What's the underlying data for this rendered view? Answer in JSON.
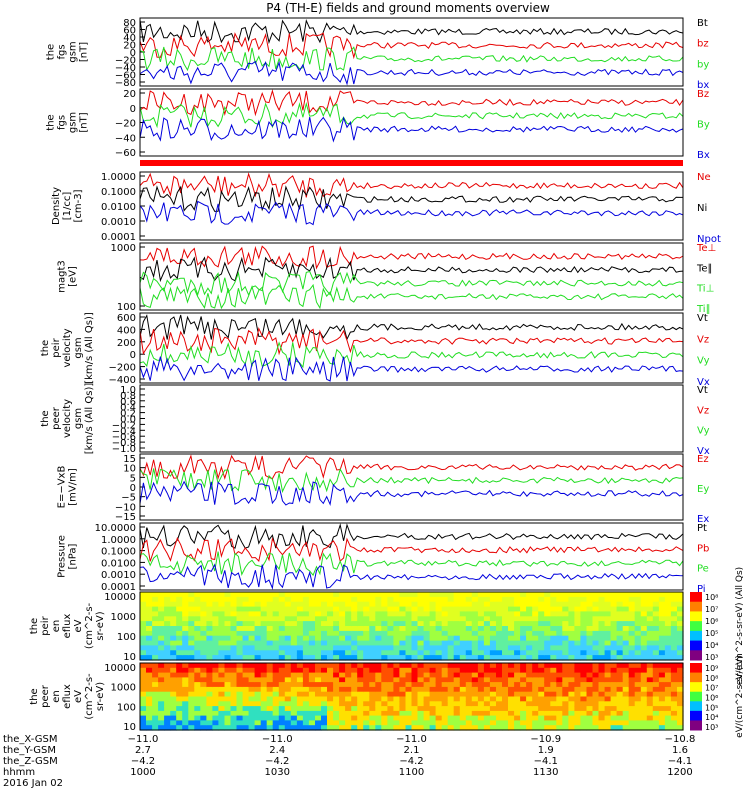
{
  "title": "P4 (TH-E) fields and ground moments overview",
  "colors": {
    "black": "#000000",
    "red": "#e60000",
    "green": "#22dd22",
    "blue": "#0000dd"
  },
  "chart_data": [
    {
      "type": "line",
      "ylabel": [
        "the",
        "fgs",
        "gsm",
        "[nT]"
      ],
      "yticks": [
        "80",
        "60",
        "40",
        "20",
        "0",
        "−20",
        "−40",
        "−60",
        "−80"
      ],
      "series": [
        {
          "name": "Bt",
          "color": "black"
        },
        {
          "name": "bz",
          "color": "red"
        },
        {
          "name": "by",
          "color": "green"
        },
        {
          "name": "bx",
          "color": "blue"
        }
      ]
    },
    {
      "type": "line",
      "ylabel": [
        "the",
        "fgs",
        "gsm",
        "[nT]"
      ],
      "yticks": [
        "20",
        "0",
        "−20",
        "−40",
        "−60"
      ],
      "series": [
        {
          "name": "Bz",
          "color": "red"
        },
        {
          "name": "By",
          "color": "green"
        },
        {
          "name": "Bx",
          "color": "blue"
        }
      ]
    },
    {
      "type": "line",
      "ylabel": [
        "Density",
        "[1/cc]",
        "[cm-3]"
      ],
      "scale": "log",
      "yticks": [
        "1.0000",
        "0.1000",
        "0.0100",
        "0.0010",
        "0.0001"
      ],
      "series": [
        {
          "name": "Ne",
          "color": "red"
        },
        {
          "name": "Ni",
          "color": "black"
        },
        {
          "name": "Npot",
          "color": "blue"
        }
      ]
    },
    {
      "type": "line",
      "ylabel": [
        "magt3",
        "[eV]"
      ],
      "scale": "log",
      "yticks": [
        "1000",
        "100"
      ],
      "series": [
        {
          "name": "Te⊥",
          "color": "red"
        },
        {
          "name": "Te∥",
          "color": "black"
        },
        {
          "name": "Ti⊥",
          "color": "green"
        },
        {
          "name": "Ti∥",
          "color": "green"
        }
      ]
    },
    {
      "type": "line",
      "ylabel": [
        "the",
        "peir",
        "velocity",
        "gsm",
        "[km/s (All Qs)]"
      ],
      "yticks": [
        "600",
        "400",
        "200",
        "0",
        "−200",
        "−400"
      ],
      "series": [
        {
          "name": "Vt",
          "color": "black"
        },
        {
          "name": "Vz",
          "color": "red"
        },
        {
          "name": "Vy",
          "color": "green"
        },
        {
          "name": "Vx",
          "color": "blue"
        }
      ]
    },
    {
      "type": "line",
      "ylabel": [
        "the",
        "peer",
        "velocity",
        "gsm",
        "[km/s (All Qs)]"
      ],
      "yticks": [
        "1.0",
        "0.8",
        "0.6",
        "0.4",
        "0.2",
        "0.0",
        "−0.2",
        "−0.4",
        "−0.6",
        "−0.8",
        "−1.0"
      ],
      "series": [
        {
          "name": "Vt",
          "color": "black"
        },
        {
          "name": "Vz",
          "color": "red"
        },
        {
          "name": "Vy",
          "color": "green"
        },
        {
          "name": "Vx",
          "color": "blue"
        }
      ]
    },
    {
      "type": "line",
      "ylabel": [
        "E=−VxB",
        "[mV/m]"
      ],
      "yticks": [
        "15",
        "10",
        "5",
        "0",
        "−5",
        "−10",
        "−15"
      ],
      "series": [
        {
          "name": "Ez",
          "color": "red"
        },
        {
          "name": "Ey",
          "color": "green"
        },
        {
          "name": "Ex",
          "color": "blue"
        }
      ]
    },
    {
      "type": "line",
      "ylabel": [
        "Pressure",
        "[nPa]"
      ],
      "scale": "log",
      "yticks": [
        "10.0000",
        "1.0000",
        "0.1000",
        "0.0100",
        "0.0010",
        "0.0001"
      ],
      "series": [
        {
          "name": "Pt",
          "color": "black"
        },
        {
          "name": "Pb",
          "color": "red"
        },
        {
          "name": "Pe",
          "color": "green"
        },
        {
          "name": "Pi",
          "color": "blue"
        }
      ]
    },
    {
      "type": "heatmap",
      "ylabel": [
        "the",
        "peir",
        "en",
        "eflux",
        "eV",
        "(cm^2-s-",
        "sr-eV)"
      ],
      "yticks": [
        "10000",
        "1000",
        "100",
        "10"
      ],
      "colorbar": {
        "ticks": [
          "10⁸",
          "10⁷",
          "10⁶",
          "10⁵",
          "10⁴",
          "10³"
        ],
        "label": "eV/(cm^2-s-sr-eV) (All Qs)"
      }
    },
    {
      "type": "heatmap",
      "ylabel": [
        "the",
        "peer",
        "en",
        "eflux",
        "eV",
        "(cm^2-s-",
        "sr-eV)"
      ],
      "yticks": [
        "10000",
        "1000",
        "100",
        "10"
      ],
      "colorbar": {
        "ticks": [
          "10⁹",
          "10⁸",
          "10⁷",
          "10⁶",
          "10⁵",
          "10⁴",
          "10³"
        ],
        "label": "eV/(cm^2-s-sr-eV)"
      }
    }
  ],
  "x_axis": {
    "row_labels": [
      "the_X-GSM",
      "the_Y-GSM",
      "the_Z-GSM",
      "hhmm",
      "2016 Jan 02"
    ],
    "ticks": [
      {
        "x": "−11.0",
        "y": "2.7",
        "z": "−4.2",
        "t": "1000"
      },
      {
        "x": "−11.0",
        "y": "2.4",
        "z": "−4.2",
        "t": "1030"
      },
      {
        "x": "−11.0",
        "y": "2.1",
        "z": "−4.2",
        "t": "1100"
      },
      {
        "x": "−10.9",
        "y": "1.9",
        "z": "−4.1",
        "t": "1130"
      },
      {
        "x": "−10.8",
        "y": "1.6",
        "z": "−4.1",
        "t": "1200"
      }
    ]
  }
}
